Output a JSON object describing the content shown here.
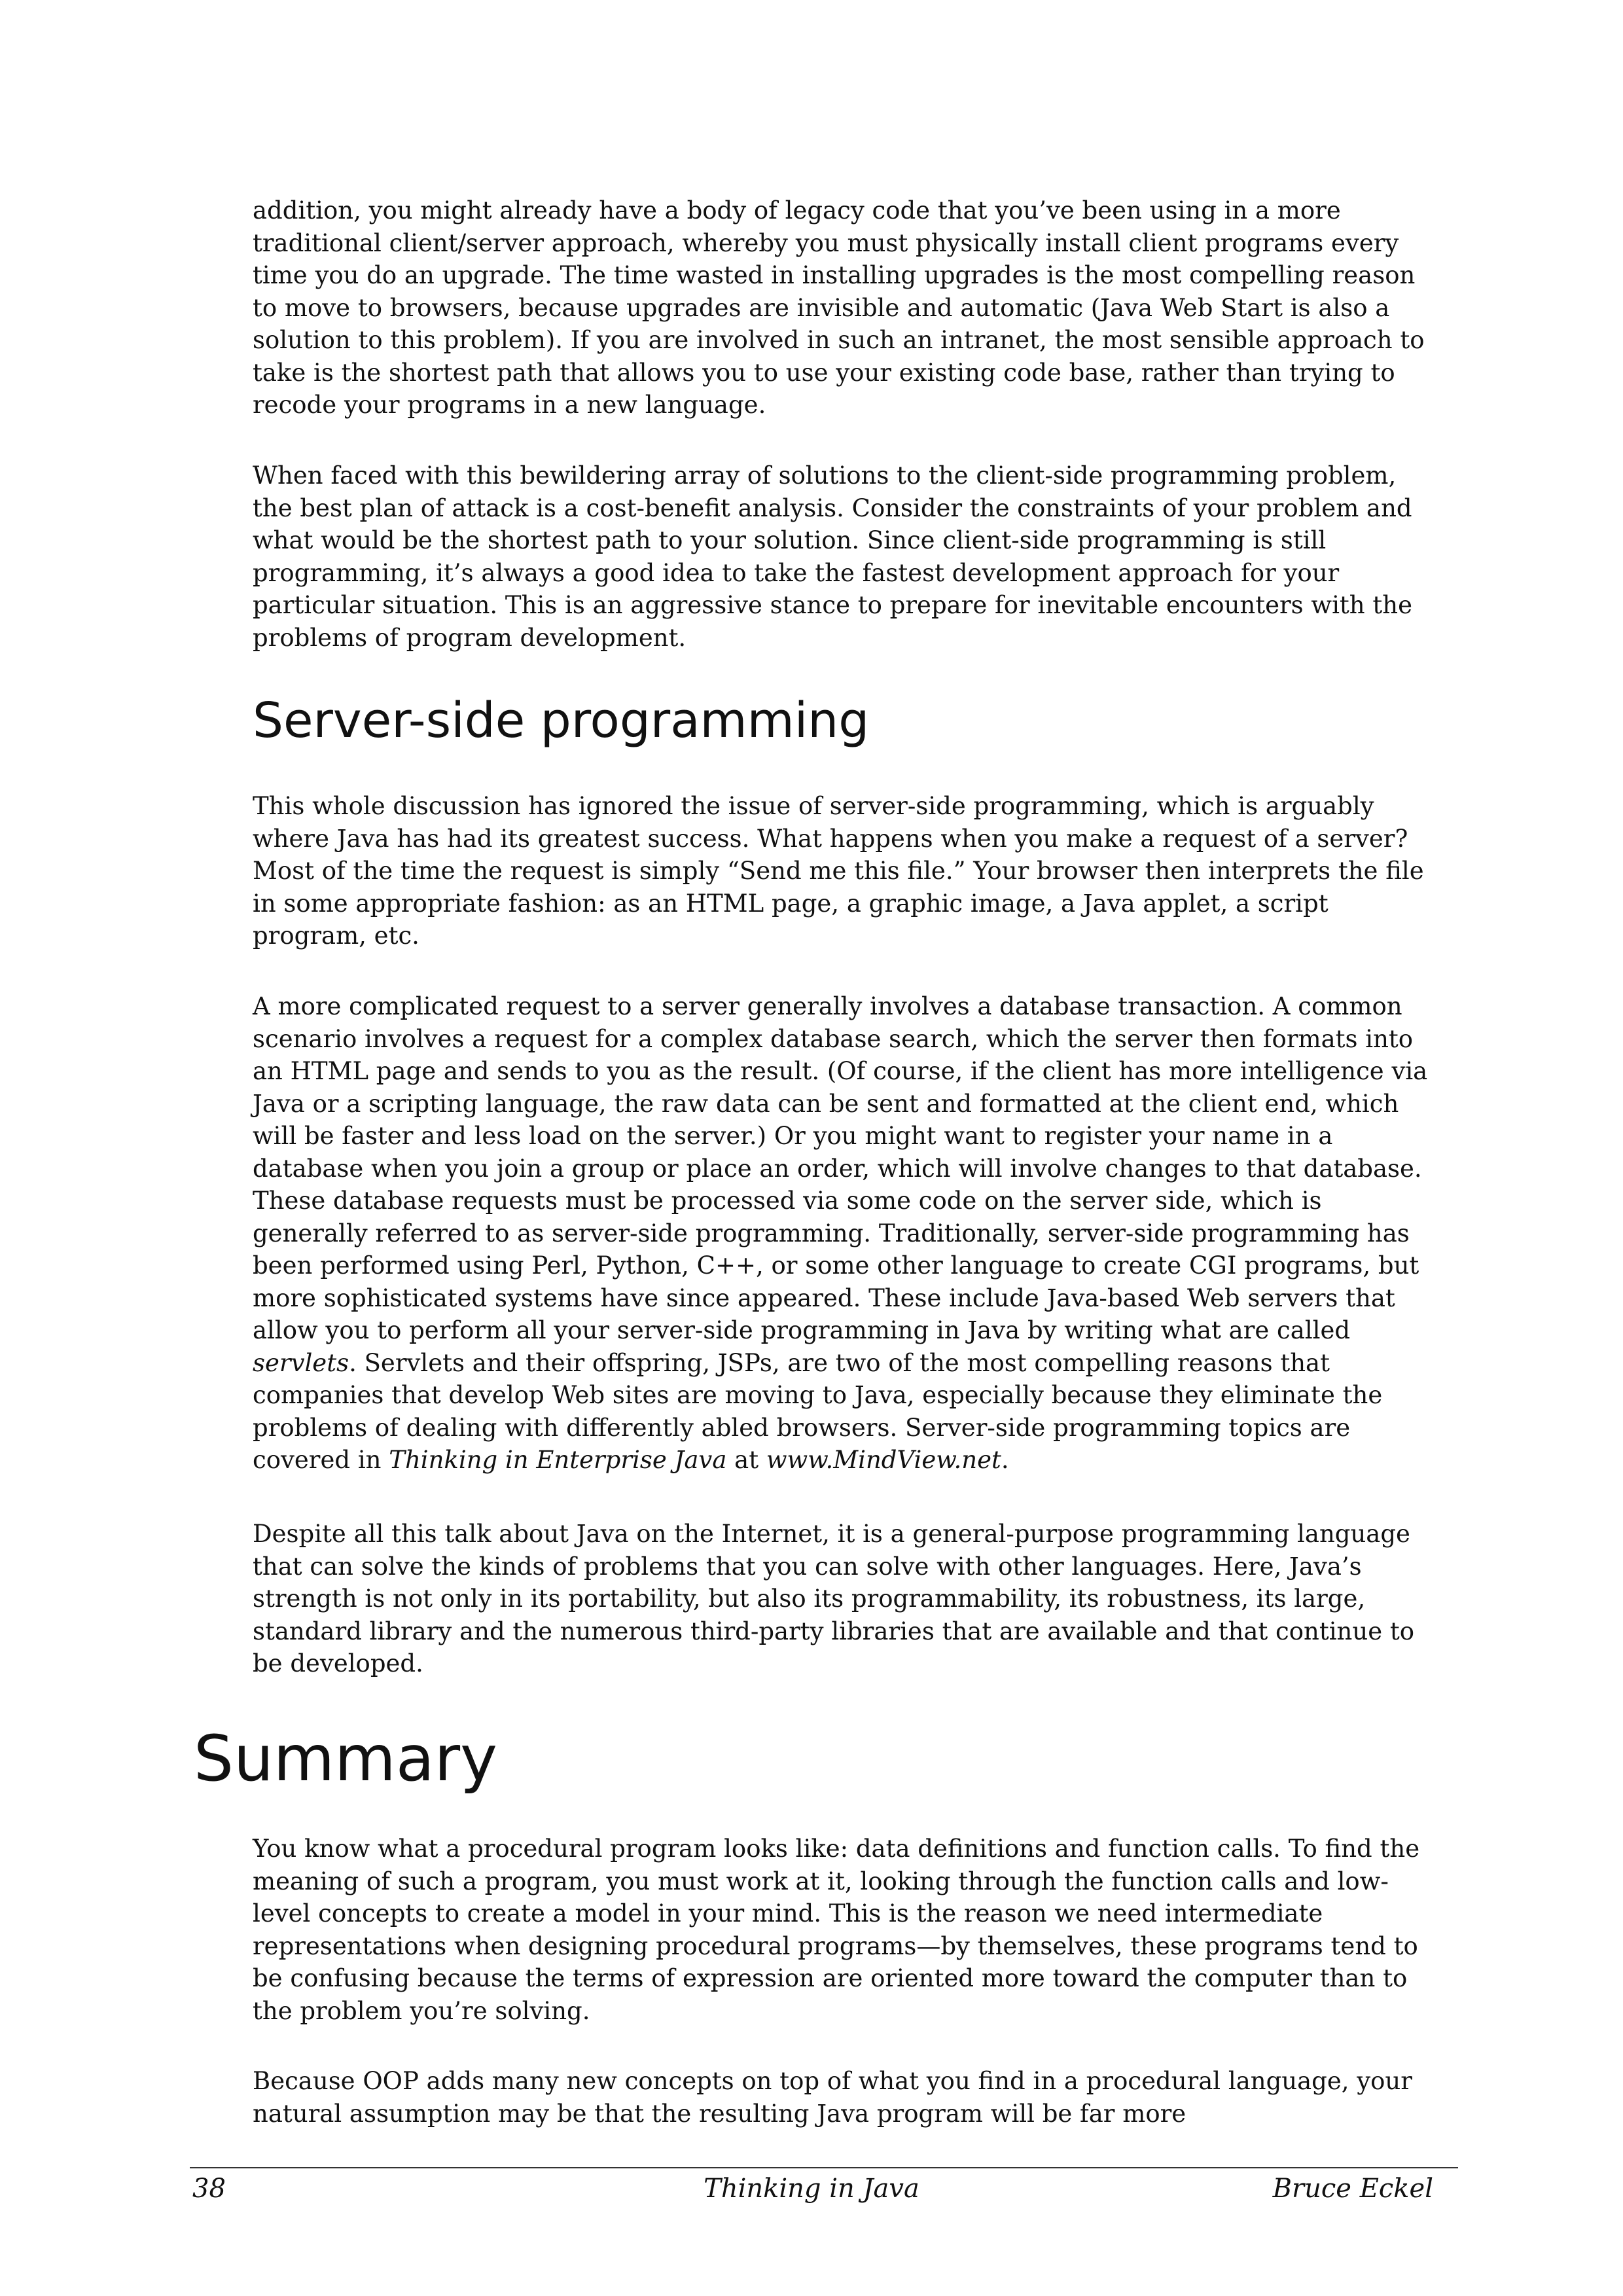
{
  "paragraphs": {
    "p1": "addition, you might already have a body of legacy code that you’ve been using in a more traditional client/server approach, whereby you must physically install client programs every time you do an upgrade. The time wasted in installing upgrades is the most compelling reason to move to browsers, because upgrades are invisible and automatic (Java Web Start is also a solution to this problem). If you are involved in such an intranet, the most sensible approach to take is the shortest path that allows you to use your existing code base, rather than trying to recode your programs in a new language.",
    "p2": "When faced with this bewildering array of solutions to the client-side programming problem, the best plan of attack is a cost-benefit analysis. Consider the constraints of your problem and what would be the shortest path to your solution. Since client-side programming is still programming, it’s always a good idea to take the fastest development approach for your particular situation. This is an aggressive stance to prepare for inevitable encounters with the problems of program development.",
    "p3": "This whole discussion has ignored the issue of server-side programming, which is arguably where Java has had its greatest success. What happens when you make a request of a server? Most of the time the request is simply “Send me this file.” Your browser then interprets the file in some appropriate fashion: as an HTML page, a graphic image, a Java applet, a script program, etc.",
    "p4": {
      "a": "A more complicated request to a server generally involves a database transaction. A common scenario involves a request for a complex database search, which the server then formats into an HTML page and sends to you as the result. (Of course, if the client has more intelligence via Java or a scripting language, the raw data can be sent and formatted at the client end, which will be faster and less load on the server.) Or you might want to register your name in a database when you join a group or place an order, which will involve changes to that database. These database requests must be processed via some code on the server side, which is generally referred to as server-side programming. Traditionally, server-side programming has been performed using Perl, Python, C++, or some other language to create CGI programs, but more sophisticated systems have since appeared. These include Java-based Web servers that allow you to perform all your server-side programming in Java by writing what are called ",
      "b": "servlets",
      "c": ". Servlets and their offspring, JSPs, are two of the most compelling reasons that companies that develop Web sites are moving to Java, especially because they eliminate the problems of dealing with differently abled browsers. Server-side programming topics are covered in ",
      "d": "Thinking in Enterprise Java",
      "e": " at ",
      "f": "www.MindView.net",
      "g": "."
    },
    "p5": "Despite all this talk about Java on the Internet, it is a general-purpose programming language that can solve the kinds of problems that you can solve with other languages. Here, Java’s strength is not only in its portability, but also its programmability, its robustness, its large, standard library and the numerous third-party libraries that are available and that continue to be developed.",
    "p6": "You know what a procedural program looks like: data definitions and function calls. To find the meaning of such a program, you must work at it, looking through the function calls and low-level concepts to create a model in your mind. This is the reason we need intermediate representations when designing procedural programs—by themselves, these programs tend to be confusing because the terms of expression are oriented more toward the computer than to the problem you’re solving.",
    "p7": "Because OOP adds many new concepts on top of what you find in a procedural language, your natural assumption may be that the resulting Java program will be far more"
  },
  "headings": {
    "server_side": "Server-side programming",
    "summary": "Summary"
  },
  "footer": {
    "page_number": "38",
    "book_title": "Thinking in Java",
    "author": "Bruce Eckel"
  }
}
